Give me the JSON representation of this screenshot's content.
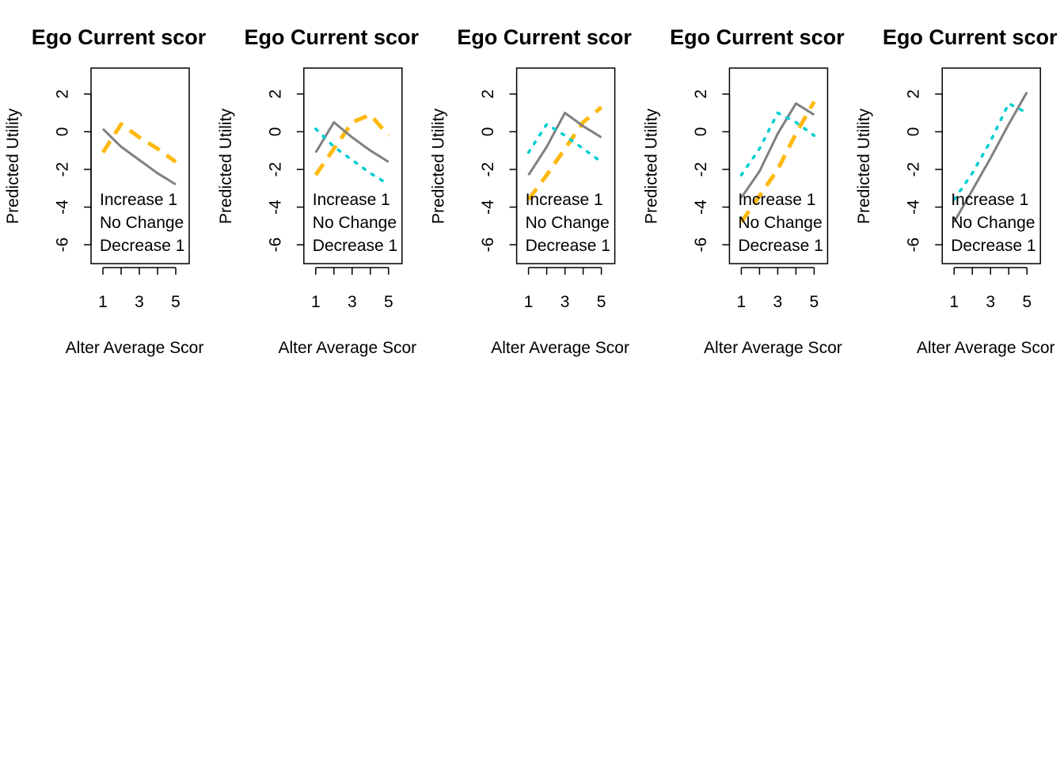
{
  "colors": {
    "increase": "#ffb90f",
    "no_change": "#808080",
    "decrease": "#00ced1"
  },
  "chart_data": [
    {
      "type": "line",
      "title": "Ego Current scor",
      "xlabel": "Alter Average Scor",
      "ylabel": "Predicted Utility",
      "xlim": [
        1,
        5
      ],
      "ylim": [
        -7,
        3
      ],
      "xticks": [
        1,
        2,
        3,
        4,
        5
      ],
      "xtick_labels": [
        "1",
        "",
        "3",
        "",
        "5"
      ],
      "yticks": [
        -6,
        -4,
        -2,
        0,
        2
      ],
      "ytick_labels": [
        "-6",
        "-4",
        "-2",
        "0",
        "2"
      ],
      "grid": false,
      "legend": [
        "Increase 1",
        "No Change",
        "Decrease 1"
      ],
      "legend_position": "bottom-left",
      "series": [
        {
          "name": "Increase 1",
          "style": "dashed",
          "x": [
            1,
            2,
            3,
            4,
            5
          ],
          "y": [
            -1.1,
            0.4,
            -0.3,
            -0.9,
            -1.6
          ]
        },
        {
          "name": "No Change",
          "style": "solid",
          "x": [
            1,
            2,
            3,
            4,
            5
          ],
          "y": [
            0.15,
            -0.8,
            -1.5,
            -2.2,
            -2.8
          ]
        }
      ]
    },
    {
      "type": "line",
      "title": "Ego Current scor",
      "xlabel": "Alter Average Scor",
      "ylabel": "Predicted Utility",
      "xlim": [
        1,
        5
      ],
      "ylim": [
        -7,
        3
      ],
      "xticks": [
        1,
        2,
        3,
        4,
        5
      ],
      "xtick_labels": [
        "1",
        "",
        "3",
        "",
        "5"
      ],
      "yticks": [
        -6,
        -4,
        -2,
        0,
        2
      ],
      "ytick_labels": [
        "-6",
        "-4",
        "-2",
        "0",
        "2"
      ],
      "grid": false,
      "legend": [
        "Increase 1",
        "No Change",
        "Decrease 1"
      ],
      "legend_position": "bottom-left",
      "series": [
        {
          "name": "Increase 1",
          "style": "dashed",
          "x": [
            1,
            2,
            3,
            4,
            5
          ],
          "y": [
            -2.3,
            -0.9,
            0.5,
            0.9,
            -0.2
          ]
        },
        {
          "name": "No Change",
          "style": "solid",
          "x": [
            1,
            2,
            3,
            4,
            5
          ],
          "y": [
            -1.1,
            0.5,
            -0.3,
            -1.0,
            -1.6
          ]
        },
        {
          "name": "Decrease 1",
          "style": "dotted",
          "x": [
            1,
            2,
            3,
            4,
            5
          ],
          "y": [
            0.15,
            -0.8,
            -1.5,
            -2.2,
            -2.8
          ]
        }
      ]
    },
    {
      "type": "line",
      "title": "Ego Current scor",
      "xlabel": "Alter Average Scor",
      "ylabel": "Predicted Utility",
      "xlim": [
        1,
        5
      ],
      "ylim": [
        -7,
        3
      ],
      "xticks": [
        1,
        2,
        3,
        4,
        5
      ],
      "xtick_labels": [
        "1",
        "",
        "3",
        "",
        "5"
      ],
      "yticks": [
        -6,
        -4,
        -2,
        0,
        2
      ],
      "ytick_labels": [
        "-6",
        "-4",
        "-2",
        "0",
        "2"
      ],
      "grid": false,
      "legend": [
        "Increase 1",
        "No Change",
        "Decrease 1"
      ],
      "legend_position": "bottom-left",
      "series": [
        {
          "name": "Increase 1",
          "style": "dashed",
          "x": [
            1,
            2,
            3,
            4,
            5
          ],
          "y": [
            -3.6,
            -2.3,
            -0.9,
            0.5,
            1.3
          ]
        },
        {
          "name": "No Change",
          "style": "solid",
          "x": [
            1,
            2,
            3,
            4,
            5
          ],
          "y": [
            -2.3,
            -0.8,
            1.0,
            0.3,
            -0.3
          ]
        },
        {
          "name": "Decrease 1",
          "style": "dotted",
          "x": [
            1,
            2,
            3,
            4,
            5
          ],
          "y": [
            -1.1,
            0.4,
            -0.2,
            -0.9,
            -1.6
          ]
        }
      ]
    },
    {
      "type": "line",
      "title": "Ego Current scor",
      "xlabel": "Alter Average Scor",
      "ylabel": "Predicted Utility",
      "xlim": [
        1,
        5
      ],
      "ylim": [
        -7,
        3
      ],
      "xticks": [
        1,
        2,
        3,
        4,
        5
      ],
      "xtick_labels": [
        "1",
        "",
        "3",
        "",
        "5"
      ],
      "yticks": [
        -6,
        -4,
        -2,
        0,
        2
      ],
      "ytick_labels": [
        "-6",
        "-4",
        "-2",
        "0",
        "2"
      ],
      "grid": false,
      "legend": [
        "Increase 1",
        "No Change",
        "Decrease 1"
      ],
      "legend_position": "bottom-left",
      "series": [
        {
          "name": "Increase 1",
          "style": "dashed",
          "x": [
            1,
            2,
            3,
            4,
            5
          ],
          "y": [
            -4.8,
            -3.4,
            -2.0,
            -0.1,
            1.6
          ]
        },
        {
          "name": "No Change",
          "style": "solid",
          "x": [
            1,
            2,
            3,
            4,
            5
          ],
          "y": [
            -3.5,
            -2.1,
            -0.1,
            1.5,
            0.9
          ]
        },
        {
          "name": "Decrease 1",
          "style": "dotted",
          "x": [
            1,
            2,
            3,
            4,
            5
          ],
          "y": [
            -2.3,
            -0.9,
            1.0,
            0.5,
            -0.2
          ]
        }
      ]
    },
    {
      "type": "line",
      "title": "Ego Current scor",
      "xlabel": "Alter Average Scor",
      "ylabel": "Predicted Utility",
      "xlim": [
        1,
        5
      ],
      "ylim": [
        -7,
        3
      ],
      "xticks": [
        1,
        2,
        3,
        4,
        5
      ],
      "xtick_labels": [
        "1",
        "",
        "3",
        "",
        "5"
      ],
      "yticks": [
        -6,
        -4,
        -2,
        0,
        2
      ],
      "ytick_labels": [
        "-6",
        "-4",
        "-2",
        "0",
        "2"
      ],
      "grid": false,
      "legend": [
        "Increase 1",
        "No Change",
        "Decrease 1"
      ],
      "legend_position": "bottom-left",
      "series": [
        {
          "name": "No Change",
          "style": "solid",
          "x": [
            1,
            2,
            3,
            4,
            5
          ],
          "y": [
            -4.8,
            -3.1,
            -1.4,
            0.4,
            2.1
          ]
        },
        {
          "name": "Decrease 1",
          "style": "dotted",
          "x": [
            1,
            2,
            3,
            4,
            5
          ],
          "y": [
            -3.6,
            -2.2,
            -0.5,
            1.5,
            1.0
          ]
        }
      ]
    }
  ]
}
